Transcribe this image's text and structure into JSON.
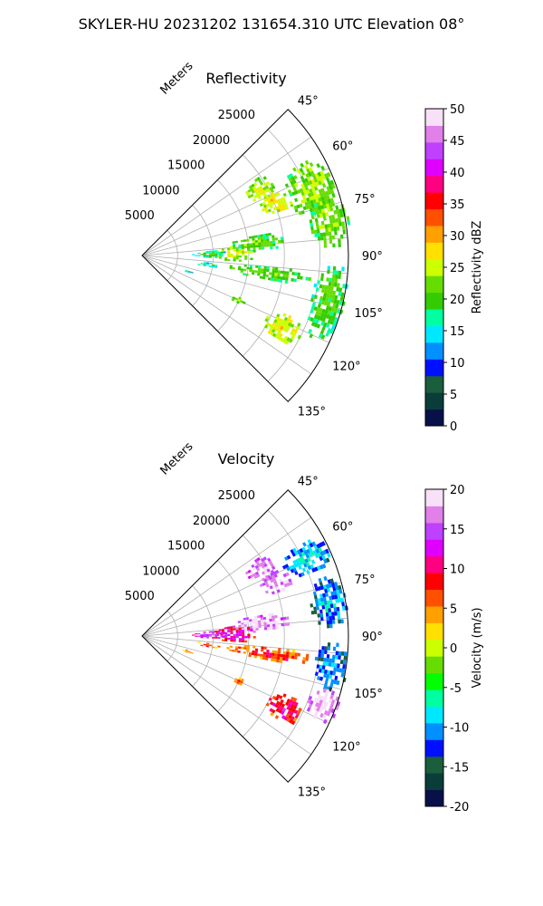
{
  "suptitle": "SKYLER-HU  20231202  131654.310 UTC Elevation 08°",
  "chart_data": [
    {
      "type": "heatmap",
      "subtype": "radar-ppi-sector",
      "title": "Reflectivity",
      "radial_label": "Meters",
      "azimuth_range_deg": [
        45,
        135
      ],
      "range_limits_m": [
        0,
        29000
      ],
      "range_ticks": [
        5000,
        10000,
        15000,
        20000,
        25000
      ],
      "azimuth_ticks": [
        45,
        60,
        75,
        90,
        105,
        120,
        135
      ],
      "azimuth_tick_labels": [
        "45°",
        "60°",
        "75°",
        "90°",
        "105°",
        "120°",
        "135°"
      ],
      "grid": true,
      "colorbar": {
        "label": "Reflectivity dBZ",
        "vmin": 0,
        "vmax": 50,
        "ticks": [
          0,
          5,
          10,
          15,
          20,
          25,
          30,
          35,
          40,
          45,
          50
        ],
        "stops": [
          "#08104a",
          "#0a3d3a",
          "#1a5e3d",
          "#0010ff",
          "#0090ff",
          "#00e8ff",
          "#00ffa0",
          "#33cc00",
          "#66dd00",
          "#ccff00",
          "#ffe000",
          "#ffa000",
          "#ff5000",
          "#ff0000",
          "#ff0080",
          "#e000ff",
          "#c040ff",
          "#e080e8",
          "#f8e0f8"
        ]
      },
      "echoes": [
        {
          "az": [
            56,
            66
          ],
          "range_m": [
            17000,
            21000
          ],
          "value": 21
        },
        {
          "az": [
            60,
            78
          ],
          "range_m": [
            22000,
            29000
          ],
          "value": 20
        },
        {
          "az": [
            64,
            73
          ],
          "range_m": [
            18000,
            22500
          ],
          "value": 23
        },
        {
          "az": [
            72,
            88
          ],
          "range_m": [
            24000,
            29500
          ],
          "value": 19
        },
        {
          "az": [
            80,
            88
          ],
          "range_m": [
            12000,
            21000
          ],
          "value": 18
        },
        {
          "az": [
            84,
            94
          ],
          "range_m": [
            10000,
            16000
          ],
          "value": 22
        },
        {
          "az": [
            86,
            92
          ],
          "range_m": [
            7000,
            12000
          ],
          "value": 15
        },
        {
          "az": [
            95,
            101
          ],
          "range_m": [
            12000,
            24000
          ],
          "value": 18
        },
        {
          "az": [
            96,
            100
          ],
          "range_m": [
            7500,
            11000
          ],
          "value": 14
        },
        {
          "az": [
            92,
            116
          ],
          "range_m": [
            24500,
            29500
          ],
          "value": 17
        },
        {
          "az": [
            107,
            111
          ],
          "range_m": [
            6000,
            7500
          ],
          "value": 13
        },
        {
          "az": [
            113,
            117
          ],
          "range_m": [
            14000,
            16000
          ],
          "value": 21
        },
        {
          "az": [
            112,
            122
          ],
          "range_m": [
            19500,
            25000
          ],
          "value": 23
        }
      ]
    },
    {
      "type": "heatmap",
      "subtype": "radar-ppi-sector",
      "title": "Velocity",
      "radial_label": "Meters",
      "azimuth_range_deg": [
        45,
        135
      ],
      "range_limits_m": [
        0,
        29000
      ],
      "range_ticks": [
        5000,
        10000,
        15000,
        20000,
        25000
      ],
      "azimuth_ticks": [
        45,
        60,
        75,
        90,
        105,
        120,
        135
      ],
      "azimuth_tick_labels": [
        "45°",
        "60°",
        "75°",
        "90°",
        "105°",
        "120°",
        "135°"
      ],
      "grid": true,
      "colorbar": {
        "label": "Velocity (m/s)",
        "vmin": -20,
        "vmax": 20,
        "ticks": [
          -20,
          -15,
          -10,
          -5,
          0,
          5,
          10,
          15,
          20
        ],
        "stops": [
          "#08104a",
          "#0a3d3a",
          "#1a5e3d",
          "#0010ff",
          "#0090ff",
          "#00e8ff",
          "#00ffa0",
          "#00ff00",
          "#66dd00",
          "#ccff00",
          "#ffe000",
          "#ffa000",
          "#ff5000",
          "#ff0000",
          "#ff0080",
          "#e000ff",
          "#c040ff",
          "#e080e8",
          "#f8e0f8"
        ]
      },
      "echoes": [
        {
          "az": [
            56,
            66
          ],
          "range_m": [
            17000,
            21000
          ],
          "value": 14
        },
        {
          "az": [
            60,
            70
          ],
          "range_m": [
            22000,
            29000
          ],
          "value": -12
        },
        {
          "az": [
            64,
            73
          ],
          "range_m": [
            18000,
            22500
          ],
          "value": 15
        },
        {
          "az": [
            72,
            88
          ],
          "range_m": [
            24000,
            29500
          ],
          "value": -13
        },
        {
          "az": [
            80,
            88
          ],
          "range_m": [
            12000,
            21000
          ],
          "value": 15
        },
        {
          "az": [
            84,
            94
          ],
          "range_m": [
            10000,
            16000
          ],
          "value": 9
        },
        {
          "az": [
            86,
            92
          ],
          "range_m": [
            7000,
            12000
          ],
          "value": 11
        },
        {
          "az": [
            95,
            101
          ],
          "range_m": [
            12000,
            24000
          ],
          "value": 4
        },
        {
          "az": [
            96,
            100
          ],
          "range_m": [
            7500,
            11000
          ],
          "value": 2
        },
        {
          "az": [
            92,
            106
          ],
          "range_m": [
            24500,
            29500
          ],
          "value": -14
        },
        {
          "az": [
            106,
            116
          ],
          "range_m": [
            25000,
            29500
          ],
          "value": 16
        },
        {
          "az": [
            107,
            111
          ],
          "range_m": [
            6000,
            7500
          ],
          "value": 1
        },
        {
          "az": [
            113,
            117
          ],
          "range_m": [
            14000,
            16000
          ],
          "value": 2
        },
        {
          "az": [
            112,
            122
          ],
          "range_m": [
            19500,
            25000
          ],
          "value": 7
        }
      ]
    }
  ]
}
